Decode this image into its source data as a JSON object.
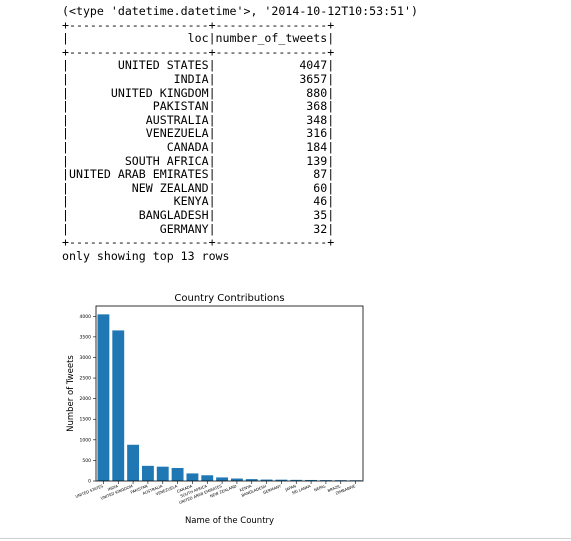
{
  "console": {
    "type_line": "(<type 'datetime.datetime'>, '2014-10-12T10:53:51')",
    "columns": [
      "loc",
      "number_of_tweets"
    ],
    "rows": [
      [
        "UNITED STATES",
        "4047"
      ],
      [
        "INDIA",
        "3657"
      ],
      [
        "UNITED KINGDOM",
        "880"
      ],
      [
        "PAKISTAN",
        "368"
      ],
      [
        "AUSTRALIA",
        "348"
      ],
      [
        "VENEZUELA",
        "316"
      ],
      [
        "CANADA",
        "184"
      ],
      [
        "SOUTH AFRICA",
        "139"
      ],
      [
        "UNITED ARAB EMIRATES",
        "87"
      ],
      [
        "NEW ZEALAND",
        "60"
      ],
      [
        "KENYA",
        "46"
      ],
      [
        "BANGLADESH",
        "35"
      ],
      [
        "GERMANY",
        "32"
      ]
    ],
    "footer": "only showing top 13 rows"
  },
  "chart_data": {
    "type": "bar",
    "title": "Country Contributions",
    "xlabel": "Name of the Country",
    "ylabel": "Number of Tweets",
    "categories": [
      "UNITED STATES",
      "INDIA",
      "UNITED KINGDOM",
      "PAKISTAN",
      "AUSTRALIA",
      "VENEZUELA",
      "CANADA",
      "SOUTH AFRICA",
      "UNITED ARAB EMIRATES",
      "NEW ZEALAND",
      "KENYA",
      "BANGLADESH",
      "GERMANY",
      "JAPAN",
      "SRI LANKA",
      "NEPAL",
      "BRAZIL",
      "ZIMBABWE"
    ],
    "values": [
      4047,
      3657,
      880,
      368,
      348,
      316,
      184,
      139,
      87,
      60,
      46,
      35,
      32,
      28,
      25,
      22,
      20,
      18
    ],
    "ylim": [
      0,
      4250
    ],
    "yticks": [
      0,
      500,
      1000,
      1500,
      2000,
      2500,
      3000,
      3500,
      4000
    ],
    "grid": false,
    "bar_color": "#1f77b4"
  }
}
